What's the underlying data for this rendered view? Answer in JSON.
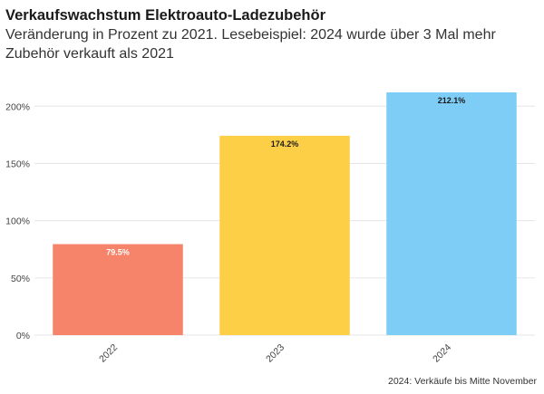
{
  "header": {
    "title": "Verkaufswachstum Elektroauto-Ladezubehör",
    "subtitle": "Veränderung in Prozent zu 2021. Lesebeispiel: 2024 wurde über 3 Mal mehr Zubehör verkauft als 2021"
  },
  "footnote": "2024: Verkäufe bis Mitte November",
  "chart_data": {
    "type": "bar",
    "categories": [
      "2022",
      "2023",
      "2024"
    ],
    "values": [
      79.5,
      174.2,
      212.1
    ],
    "data_labels": [
      "79.5%",
      "174.2%",
      "212.1%"
    ],
    "colors": [
      "#f5846a",
      "#fdcf46",
      "#7ecdf7"
    ],
    "label_colors": [
      "#ffffff",
      "#1a1a1a",
      "#1a1a1a"
    ],
    "yticks": [
      0,
      50,
      100,
      150,
      200
    ],
    "ytick_labels": [
      "0%",
      "50%",
      "100%",
      "150%",
      "200%"
    ],
    "ylim": [
      0,
      220
    ],
    "grid": true,
    "xlabel": "",
    "ylabel": ""
  }
}
